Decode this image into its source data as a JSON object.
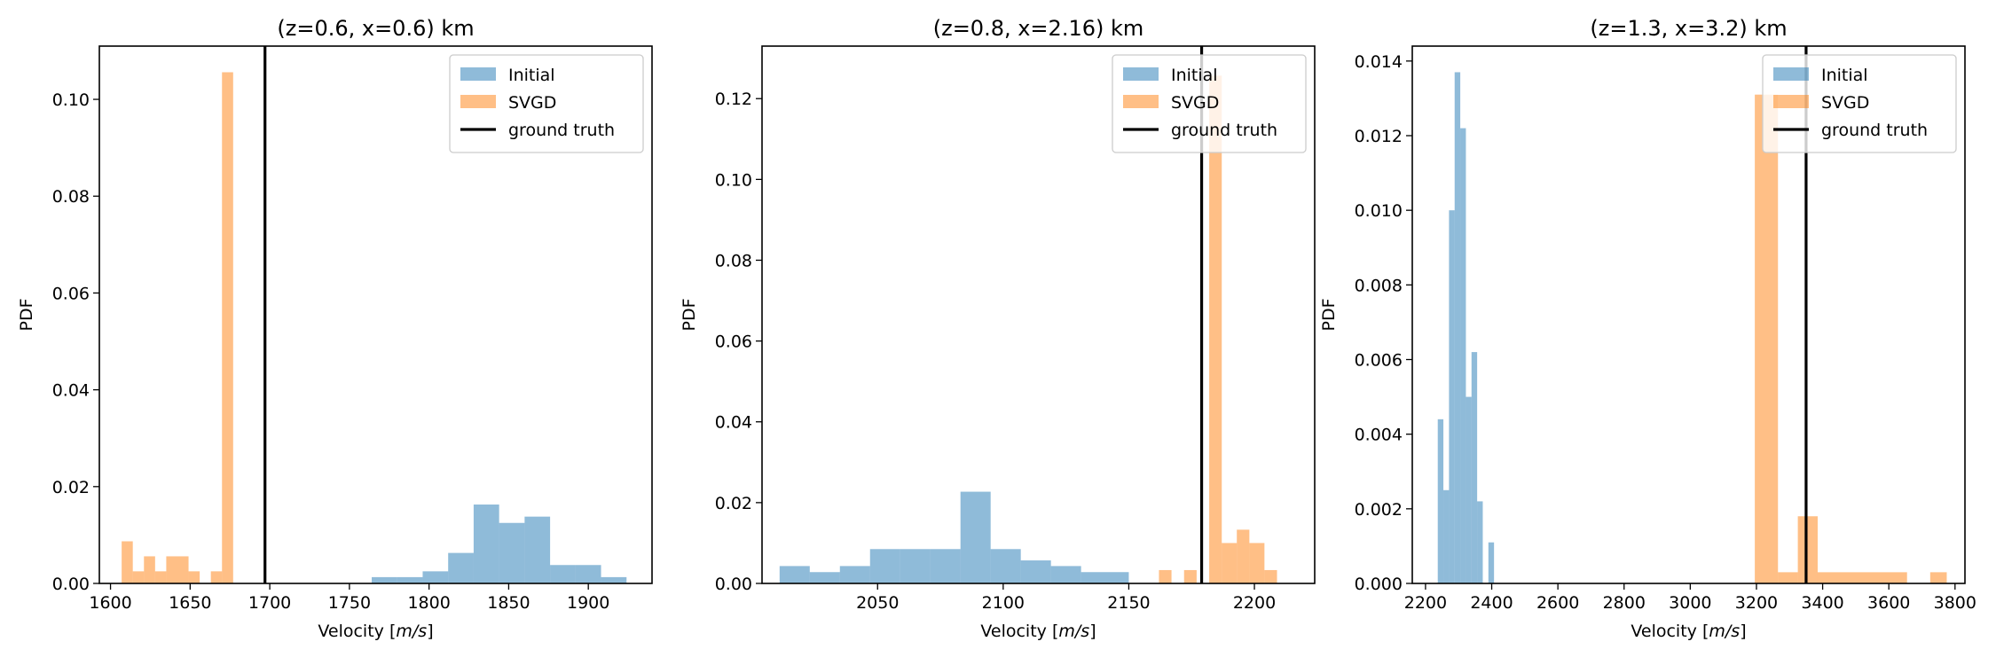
{
  "chart_data": [
    {
      "type": "histogram",
      "title": "(z=0.6, x=0.6) km",
      "xlabel": "Velocity [m/s]",
      "ylabel": "PDF",
      "xlim": [
        1593,
        1940
      ],
      "ylim": [
        0,
        0.111
      ],
      "xticks": [
        1600,
        1650,
        1700,
        1750,
        1800,
        1850,
        1900
      ],
      "yticks": [
        0.0,
        0.02,
        0.04,
        0.06,
        0.08,
        0.1
      ],
      "ytick_decimals": 2,
      "legend": {
        "position": "top-right",
        "entries": [
          "Initial",
          "SVGD",
          "ground truth"
        ]
      },
      "series": [
        {
          "name": "Initial",
          "color": "#1f77b4",
          "alpha": 0.5,
          "bins": [
            [
              1764,
              1780,
              0.0013
            ],
            [
              1780,
              1796,
              0.0013
            ],
            [
              1796,
              1812,
              0.0025
            ],
            [
              1812,
              1828,
              0.0063
            ],
            [
              1828,
              1844,
              0.0163
            ],
            [
              1844,
              1860,
              0.0125
            ],
            [
              1860,
              1876,
              0.0138
            ],
            [
              1876,
              1892,
              0.0038
            ],
            [
              1892,
              1908,
              0.0038
            ],
            [
              1908,
              1924,
              0.0013
            ]
          ]
        },
        {
          "name": "SVGD",
          "color": "#ff7f0e",
          "alpha": 0.5,
          "bins": [
            [
              1607,
              1614,
              0.0087
            ],
            [
              1614,
              1621,
              0.0025
            ],
            [
              1621,
              1628,
              0.0056
            ],
            [
              1628,
              1635,
              0.0025
            ],
            [
              1635,
              1642,
              0.0056
            ],
            [
              1642,
              1649,
              0.0056
            ],
            [
              1649,
              1656,
              0.0025
            ],
            [
              1663,
              1670,
              0.0025
            ],
            [
              1670,
              1677,
              0.1056
            ]
          ]
        }
      ],
      "ground_truth": 1697
    },
    {
      "type": "histogram",
      "title": "(z=0.8, x=2.16) km",
      "xlabel": "Velocity [m/s]",
      "ylabel": "PDF",
      "xlim": [
        2004,
        2224
      ],
      "ylim": [
        0,
        0.133
      ],
      "xticks": [
        2050,
        2100,
        2150,
        2200
      ],
      "yticks": [
        0.0,
        0.02,
        0.04,
        0.06,
        0.08,
        0.1,
        0.12
      ],
      "ytick_decimals": 2,
      "legend": {
        "position": "top-right",
        "entries": [
          "Initial",
          "SVGD",
          "ground truth"
        ]
      },
      "series": [
        {
          "name": "Initial",
          "color": "#1f77b4",
          "alpha": 0.5,
          "bins": [
            [
              2011,
              2023,
              0.0043
            ],
            [
              2023,
              2035,
              0.0028
            ],
            [
              2035,
              2047,
              0.0043
            ],
            [
              2047,
              2059,
              0.0085
            ],
            [
              2059,
              2071,
              0.0085
            ],
            [
              2071,
              2083,
              0.0085
            ],
            [
              2083,
              2095,
              0.0227
            ],
            [
              2095,
              2107,
              0.0085
            ],
            [
              2107,
              2119,
              0.0057
            ],
            [
              2119,
              2131,
              0.0043
            ],
            [
              2131,
              2150,
              0.0028
            ]
          ]
        },
        {
          "name": "SVGD",
          "color": "#ff7f0e",
          "alpha": 0.5,
          "bins": [
            [
              2162,
              2167,
              0.0033
            ],
            [
              2172,
              2177,
              0.0033
            ],
            [
              2182,
              2187,
              0.1257
            ],
            [
              2187,
              2193,
              0.01
            ],
            [
              2193,
              2198,
              0.0133
            ],
            [
              2198,
              2204,
              0.01
            ],
            [
              2204,
              2209,
              0.0033
            ]
          ]
        }
      ],
      "ground_truth": 2179
    },
    {
      "type": "histogram",
      "title": "(z=1.3, x=3.2) km",
      "xlabel": "Velocity [m/s]",
      "ylabel": "PDF",
      "xlim": [
        2160,
        3830
      ],
      "ylim": [
        0,
        0.0144
      ],
      "xticks": [
        2200,
        2400,
        2600,
        2800,
        3000,
        3200,
        3400,
        3600,
        3800
      ],
      "yticks": [
        0.0,
        0.002,
        0.004,
        0.006,
        0.008,
        0.01,
        0.012,
        0.014
      ],
      "ytick_decimals": 3,
      "legend": {
        "position": "top-right",
        "entries": [
          "Initial",
          "SVGD",
          "ground truth"
        ]
      },
      "series": [
        {
          "name": "Initial",
          "color": "#1f77b4",
          "alpha": 0.5,
          "bins": [
            [
              2237,
              2254,
              0.0044
            ],
            [
              2254,
              2271,
              0.0025
            ],
            [
              2271,
              2288,
              0.01
            ],
            [
              2288,
              2305,
              0.0137
            ],
            [
              2305,
              2322,
              0.0122
            ],
            [
              2322,
              2339,
              0.005
            ],
            [
              2339,
              2356,
              0.0062
            ],
            [
              2356,
              2373,
              0.0022
            ],
            [
              2390,
              2407,
              0.0011
            ]
          ]
        },
        {
          "name": "SVGD",
          "color": "#ff7f0e",
          "alpha": 0.5,
          "bins": [
            [
              3195,
              3265,
              0.0131
            ],
            [
              3265,
              3325,
              0.0003
            ],
            [
              3325,
              3385,
              0.0018
            ],
            [
              3385,
              3655,
              0.0003
            ],
            [
              3725,
              3775,
              0.0003
            ]
          ]
        }
      ],
      "ground_truth": 3350
    }
  ]
}
